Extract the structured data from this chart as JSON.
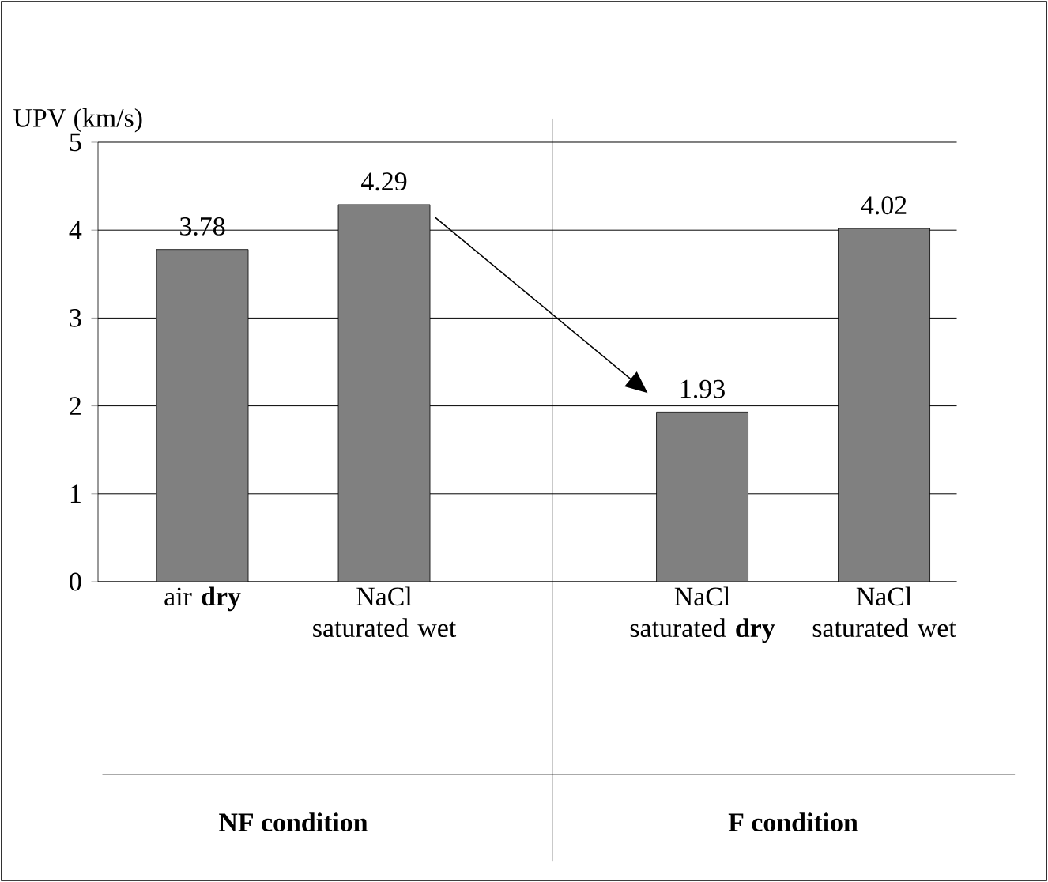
{
  "chart_data": {
    "type": "bar",
    "ylabel": "UPV (km/s)",
    "categories": [
      "air **dry**",
      "NaCl saturated wet",
      "NaCl saturated **dry**",
      "NaCl saturated wet"
    ],
    "values": [
      3.78,
      4.29,
      1.93,
      4.02
    ],
    "value_labels": [
      "3.78",
      "4.29",
      "1.93",
      "4.02"
    ],
    "color": "#808080",
    "ylim": [
      0,
      5
    ],
    "yticks": [
      0,
      1,
      2,
      3,
      4,
      5
    ],
    "grid": "y",
    "annotations": [
      "NF condition",
      "F condition"
    ]
  }
}
